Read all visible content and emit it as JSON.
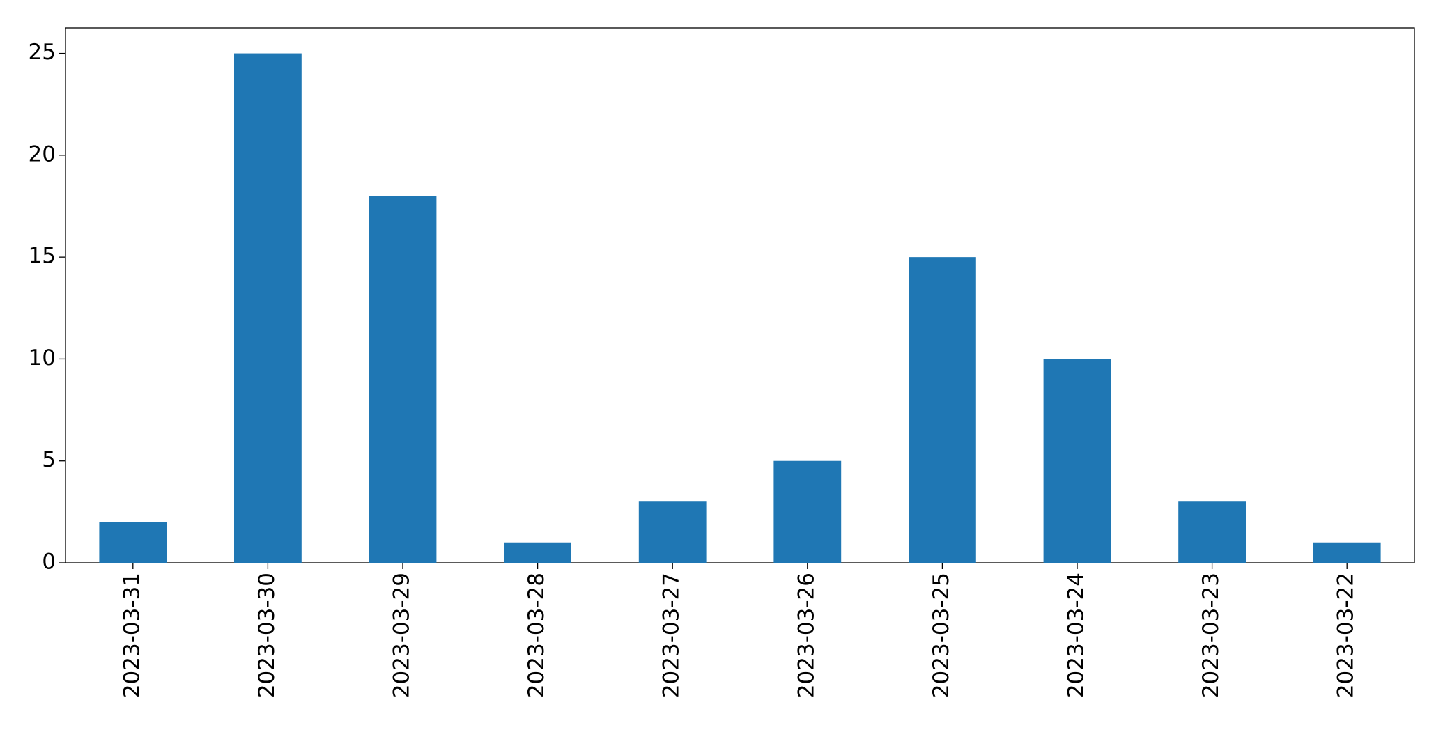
{
  "chart_data": {
    "type": "bar",
    "categories": [
      "2023-03-31",
      "2023-03-30",
      "2023-03-29",
      "2023-03-28",
      "2023-03-27",
      "2023-03-26",
      "2023-03-25",
      "2023-03-24",
      "2023-03-23",
      "2023-03-22"
    ],
    "values": [
      2,
      25,
      18,
      1,
      3,
      5,
      15,
      10,
      3,
      1
    ],
    "color": "#1f77b4",
    "ylim": [
      0,
      26.25
    ],
    "yticks": [
      0,
      5,
      10,
      15,
      20,
      25
    ],
    "grid": false
  }
}
